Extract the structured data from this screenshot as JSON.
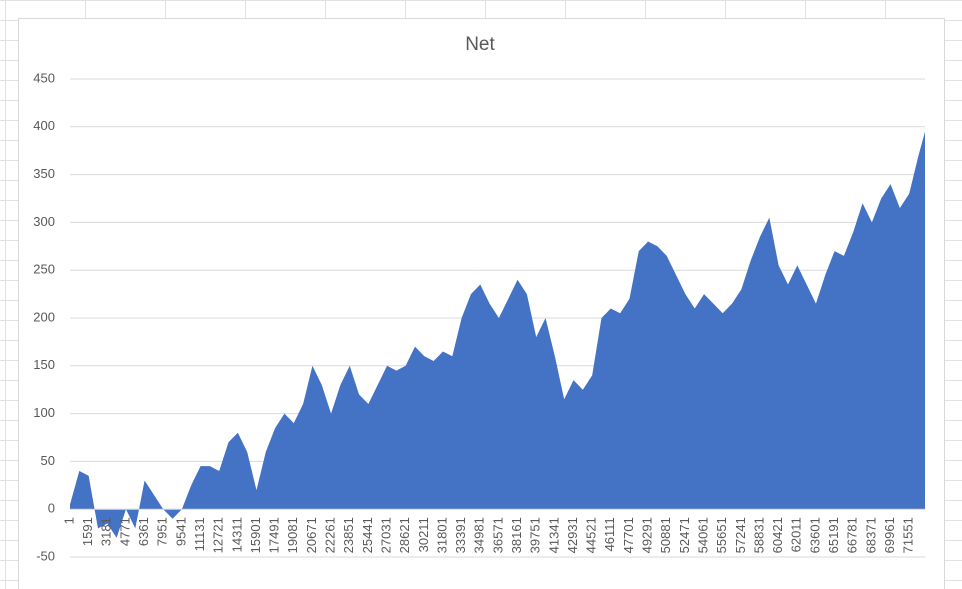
{
  "chart_data": {
    "type": "area",
    "title": "Net",
    "color": "#4472c4",
    "grid": true,
    "xlim": [
      1,
      72900
    ],
    "ylim": [
      -50,
      450
    ],
    "yticks": [
      -50,
      0,
      50,
      100,
      150,
      200,
      250,
      300,
      350,
      400,
      450
    ],
    "xticks": [
      1,
      1591,
      3181,
      4771,
      6361,
      7951,
      9541,
      11131,
      12721,
      14311,
      15901,
      17491,
      19081,
      20671,
      22261,
      23851,
      25441,
      27031,
      28621,
      30211,
      31801,
      33391,
      34981,
      36571,
      38161,
      39751,
      41341,
      42931,
      44521,
      46111,
      47701,
      49291,
      50881,
      52471,
      54061,
      55651,
      57241,
      58831,
      60421,
      62011,
      63601,
      65191,
      66781,
      68371,
      69961,
      71551
    ],
    "x": [
      1,
      795,
      1591,
      2386,
      3181,
      3976,
      4771,
      5566,
      6361,
      7156,
      7951,
      8746,
      9541,
      10336,
      11131,
      11926,
      12721,
      13516,
      14311,
      15106,
      15901,
      16696,
      17491,
      18286,
      19081,
      19876,
      20671,
      21466,
      22261,
      23056,
      23851,
      24646,
      25441,
      26236,
      27031,
      27826,
      28621,
      29416,
      30211,
      31006,
      31801,
      32596,
      33391,
      34186,
      34981,
      35776,
      36571,
      37366,
      38161,
      38956,
      39751,
      40546,
      41341,
      42136,
      42931,
      43726,
      44521,
      45316,
      46111,
      46906,
      47701,
      48496,
      49291,
      50086,
      50881,
      51676,
      52471,
      53266,
      54061,
      54856,
      55651,
      56446,
      57241,
      58036,
      58831,
      59626,
      60421,
      61216,
      62011,
      62806,
      63601,
      64396,
      65191,
      65986,
      66781,
      67576,
      68371,
      69166,
      69961,
      70756,
      71551,
      72346,
      72900
    ],
    "values": [
      5,
      40,
      35,
      -20,
      -15,
      -30,
      0,
      -20,
      30,
      15,
      0,
      -10,
      0,
      25,
      45,
      45,
      40,
      70,
      80,
      60,
      20,
      60,
      85,
      100,
      90,
      110,
      150,
      130,
      100,
      130,
      150,
      120,
      110,
      130,
      150,
      145,
      150,
      170,
      160,
      155,
      165,
      160,
      200,
      225,
      235,
      215,
      200,
      220,
      240,
      225,
      180,
      200,
      160,
      115,
      135,
      125,
      140,
      200,
      210,
      205,
      220,
      270,
      280,
      275,
      265,
      245,
      225,
      210,
      225,
      215,
      205,
      215,
      230,
      260,
      285,
      305,
      255,
      235,
      255,
      235,
      215,
      245,
      270,
      265,
      290,
      320,
      300,
      325,
      340,
      315,
      330,
      370,
      395
    ]
  }
}
